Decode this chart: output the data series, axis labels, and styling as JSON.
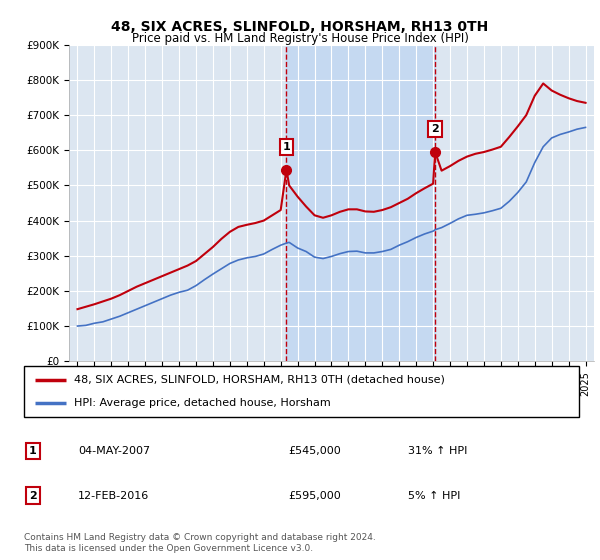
{
  "title": "48, SIX ACRES, SLINFOLD, HORSHAM, RH13 0TH",
  "subtitle": "Price paid vs. HM Land Registry's House Price Index (HPI)",
  "legend_line1": "48, SIX ACRES, SLINFOLD, HORSHAM, RH13 0TH (detached house)",
  "legend_line2": "HPI: Average price, detached house, Horsham",
  "annotation1": {
    "num": "1",
    "date": "04-MAY-2007",
    "price": "£545,000",
    "pct": "31% ↑ HPI"
  },
  "annotation2": {
    "num": "2",
    "date": "12-FEB-2016",
    "price": "£595,000",
    "pct": "5% ↑ HPI"
  },
  "footer": "Contains HM Land Registry data © Crown copyright and database right 2024.\nThis data is licensed under the Open Government Licence v3.0.",
  "marker1_x": 2007.34,
  "marker1_y": 545000,
  "marker2_x": 2016.12,
  "marker2_y": 595000,
  "shade_x1": 2007.34,
  "shade_x2": 2016.12,
  "ylim_bottom": 0,
  "ylim_top": 900000,
  "xlim_left": 1994.5,
  "xlim_right": 2025.5,
  "plot_bg_color": "#dce6f1",
  "shade_color": "#c5d9f1",
  "hpi_line_color": "#4472c4",
  "price_line_color": "#c0000c",
  "marker_color": "#c0000c",
  "grid_color": "#ffffff",
  "hpi_years": [
    1995,
    1995.5,
    1996,
    1996.5,
    1997,
    1997.5,
    1998,
    1998.5,
    1999,
    1999.5,
    2000,
    2000.5,
    2001,
    2001.5,
    2002,
    2002.5,
    2003,
    2003.5,
    2004,
    2004.5,
    2005,
    2005.5,
    2006,
    2006.5,
    2007,
    2007.34,
    2007.5,
    2008,
    2008.5,
    2009,
    2009.5,
    2010,
    2010.5,
    2011,
    2011.5,
    2012,
    2012.5,
    2013,
    2013.5,
    2014,
    2014.5,
    2015,
    2015.5,
    2016,
    2016.12,
    2016.5,
    2017,
    2017.5,
    2018,
    2018.5,
    2019,
    2019.5,
    2020,
    2020.5,
    2021,
    2021.5,
    2022,
    2022.5,
    2023,
    2023.5,
    2024,
    2024.5,
    2025
  ],
  "hpi_values": [
    100000,
    102000,
    108000,
    112000,
    120000,
    128000,
    138000,
    148000,
    158000,
    168000,
    178000,
    188000,
    196000,
    202000,
    215000,
    232000,
    248000,
    263000,
    278000,
    288000,
    294000,
    298000,
    305000,
    318000,
    330000,
    336000,
    338000,
    322000,
    312000,
    296000,
    292000,
    298000,
    306000,
    312000,
    313000,
    308000,
    308000,
    312000,
    318000,
    330000,
    340000,
    352000,
    362000,
    370000,
    374000,
    380000,
    392000,
    405000,
    415000,
    418000,
    422000,
    428000,
    435000,
    455000,
    480000,
    510000,
    565000,
    610000,
    635000,
    645000,
    652000,
    660000,
    665000
  ],
  "price_years": [
    1995,
    1995.5,
    1996,
    1996.5,
    1997,
    1997.5,
    1998,
    1998.5,
    1999,
    1999.5,
    2000,
    2000.5,
    2001,
    2001.5,
    2002,
    2002.5,
    2003,
    2003.5,
    2004,
    2004.5,
    2005,
    2005.5,
    2006,
    2006.5,
    2007,
    2007.34,
    2007.5,
    2008,
    2008.5,
    2009,
    2009.5,
    2010,
    2010.5,
    2011,
    2011.5,
    2012,
    2012.5,
    2013,
    2013.5,
    2014,
    2014.5,
    2015,
    2015.5,
    2016,
    2016.12,
    2016.5,
    2017,
    2017.5,
    2018,
    2018.5,
    2019,
    2019.5,
    2020,
    2020.5,
    2021,
    2021.5,
    2022,
    2022.5,
    2023,
    2023.5,
    2024,
    2024.5,
    2025
  ],
  "price_values": [
    148000,
    155000,
    162000,
    170000,
    178000,
    188000,
    200000,
    212000,
    222000,
    232000,
    242000,
    252000,
    262000,
    272000,
    285000,
    305000,
    325000,
    348000,
    368000,
    382000,
    388000,
    393000,
    400000,
    415000,
    430000,
    545000,
    500000,
    468000,
    440000,
    415000,
    408000,
    415000,
    425000,
    432000,
    432000,
    426000,
    425000,
    430000,
    438000,
    450000,
    462000,
    478000,
    492000,
    505000,
    595000,
    542000,
    555000,
    570000,
    582000,
    590000,
    595000,
    602000,
    610000,
    638000,
    668000,
    700000,
    755000,
    790000,
    770000,
    758000,
    748000,
    740000,
    735000
  ],
  "xticks": [
    1995,
    1996,
    1997,
    1998,
    1999,
    2000,
    2001,
    2002,
    2003,
    2004,
    2005,
    2006,
    2007,
    2008,
    2009,
    2010,
    2011,
    2012,
    2013,
    2014,
    2015,
    2016,
    2017,
    2018,
    2019,
    2020,
    2021,
    2022,
    2023,
    2024,
    2025
  ]
}
